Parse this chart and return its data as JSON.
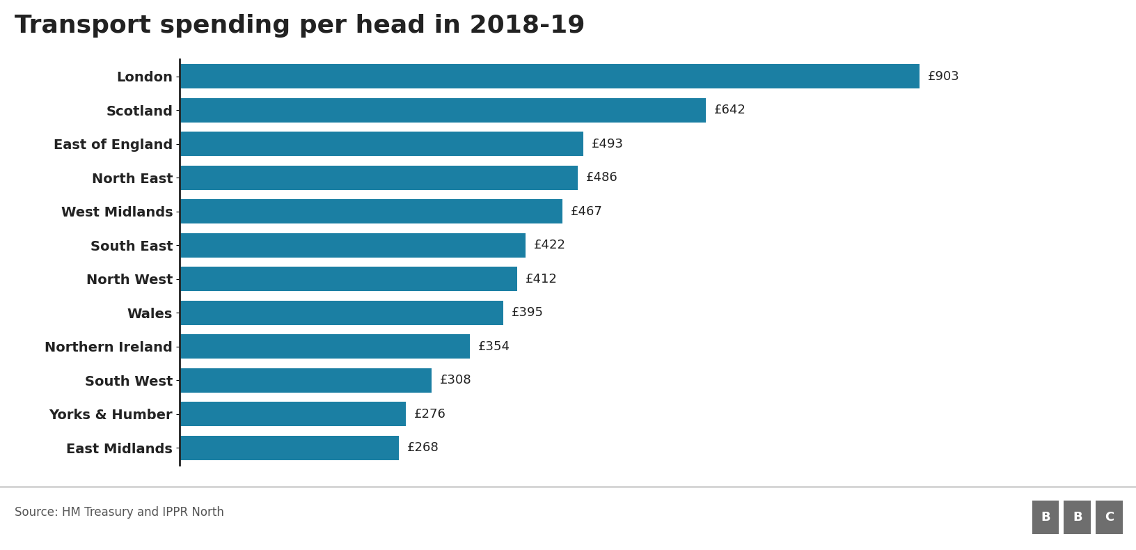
{
  "title": "Transport spending per head in 2018-19",
  "categories": [
    "London",
    "Scotland",
    "East of England",
    "North East",
    "West Midlands",
    "South East",
    "North West",
    "Wales",
    "Northern Ireland",
    "South West",
    "Yorks & Humber",
    "East Midlands"
  ],
  "values": [
    903,
    642,
    493,
    486,
    467,
    422,
    412,
    395,
    354,
    308,
    276,
    268
  ],
  "bar_color": "#1b7fa3",
  "label_color": "#222222",
  "background_color": "#ffffff",
  "source_text": "Source: HM Treasury and IPPR North",
  "title_fontsize": 26,
  "label_fontsize": 14,
  "value_fontsize": 13,
  "source_fontsize": 12,
  "xlim": [
    0,
    980
  ],
  "bbc_box_color": "#6e6e6e"
}
